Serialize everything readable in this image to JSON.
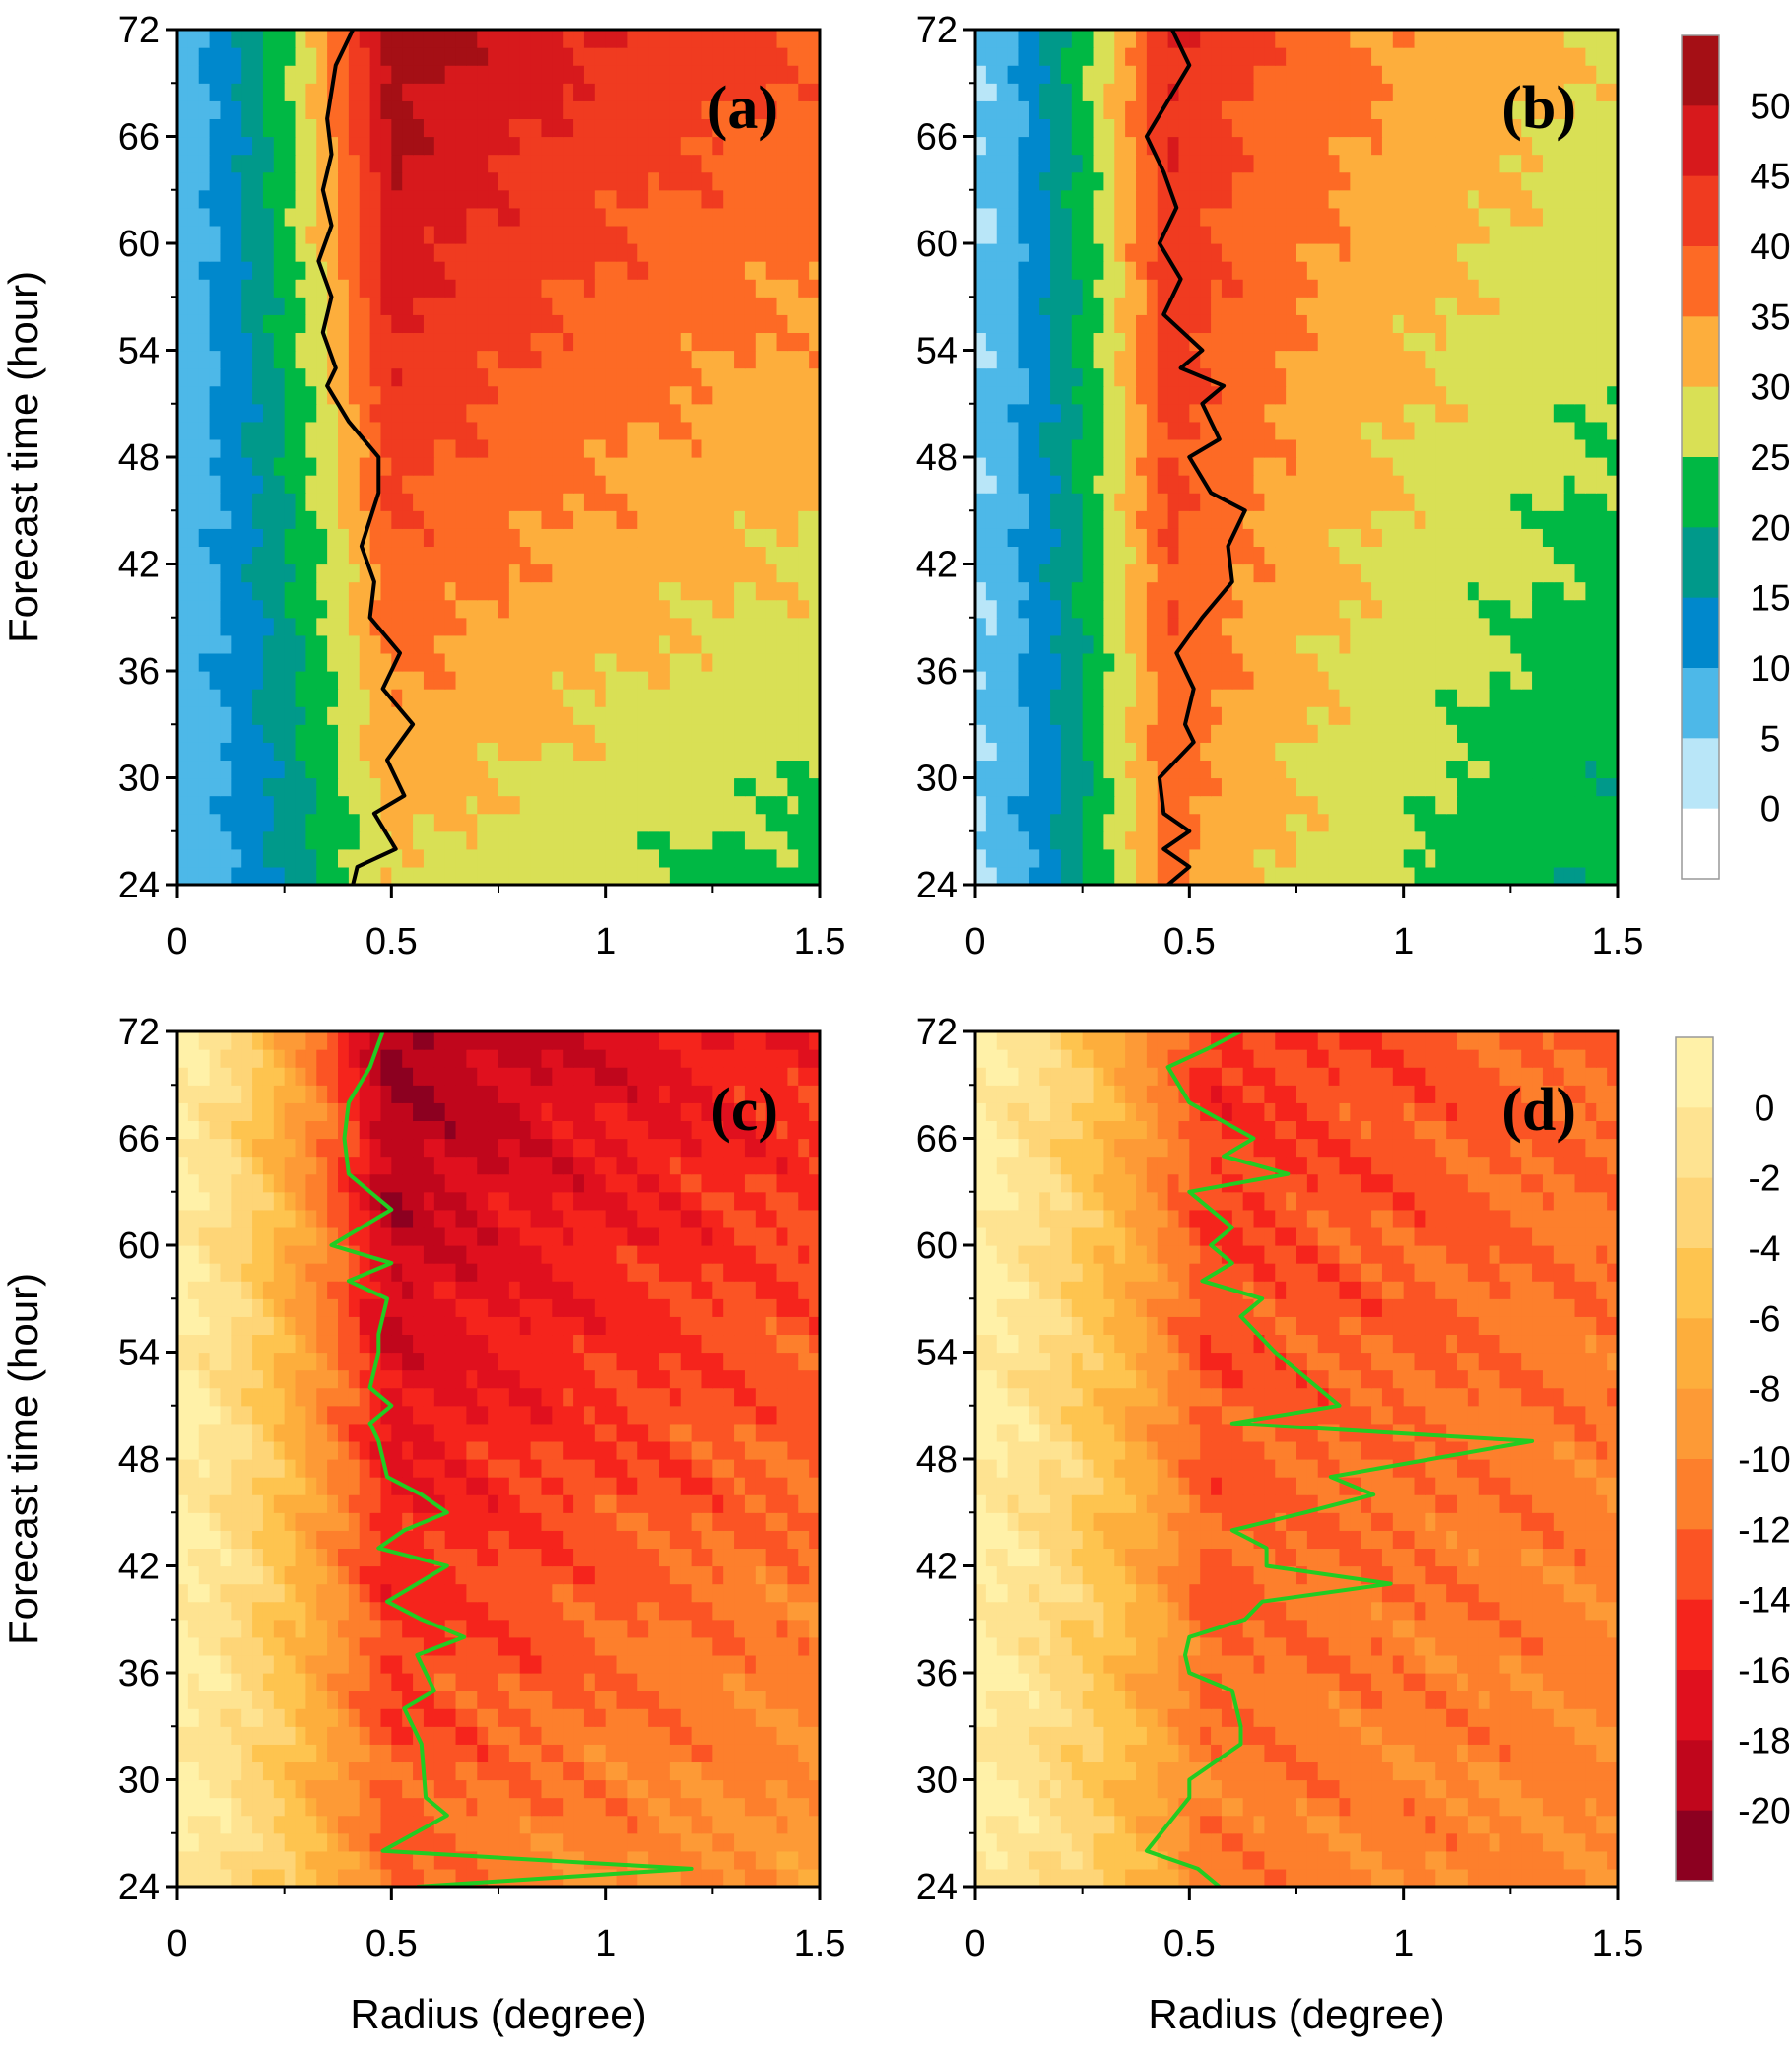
{
  "chart_data": [
    {
      "type": "heatmap",
      "panel_label": "(a)",
      "ylabel": "Forecast time (hour)",
      "xlabel": "",
      "xlim": [
        0,
        1.5
      ],
      "ylim": [
        24,
        72
      ],
      "x_ticks": [
        "0",
        "0.5",
        "1",
        "1.5"
      ],
      "y_ticks": [
        "24",
        "30",
        "36",
        "42",
        "48",
        "54",
        "60",
        "66",
        "72"
      ],
      "colorbar": "top",
      "profile": {
        "core": 0.5,
        "core_width": 0.42,
        "peak_start": 54,
        "peak_end": 30,
        "inner_start": 7,
        "inner_end": 7,
        "outer_start": 40,
        "outer_end": 23
      },
      "line": {
        "color": "#000000",
        "points": [
          [
            0.41,
            72
          ],
          [
            0.37,
            70
          ],
          [
            0.35,
            67
          ],
          [
            0.36,
            65
          ],
          [
            0.34,
            63
          ],
          [
            0.36,
            61
          ],
          [
            0.33,
            59
          ],
          [
            0.36,
            57
          ],
          [
            0.34,
            55
          ],
          [
            0.37,
            53
          ],
          [
            0.35,
            52
          ],
          [
            0.4,
            50
          ],
          [
            0.47,
            48
          ],
          [
            0.47,
            46
          ],
          [
            0.43,
            43
          ],
          [
            0.46,
            41
          ],
          [
            0.45,
            39
          ],
          [
            0.52,
            37
          ],
          [
            0.48,
            35
          ],
          [
            0.55,
            33
          ],
          [
            0.49,
            31
          ],
          [
            0.53,
            29
          ],
          [
            0.46,
            28
          ],
          [
            0.51,
            26
          ],
          [
            0.42,
            25
          ],
          [
            0.41,
            24
          ]
        ]
      }
    },
    {
      "type": "heatmap",
      "panel_label": "(b)",
      "ylabel": "",
      "xlabel": "",
      "xlim": [
        0,
        1.5
      ],
      "ylim": [
        24,
        72
      ],
      "x_ticks": [
        "0",
        "0.5",
        "1",
        "1.5"
      ],
      "y_ticks": [
        "24",
        "30",
        "36",
        "42",
        "48",
        "54",
        "60",
        "66",
        "72"
      ],
      "profile": {
        "core": 0.45,
        "core_width": 0.3,
        "peak_start": 46,
        "peak_end": 37,
        "inner_start": 5,
        "inner_end": 5,
        "outer_start": 30,
        "outer_end": 20
      },
      "line": {
        "color": "#000000",
        "points": [
          [
            0.46,
            72
          ],
          [
            0.5,
            70
          ],
          [
            0.45,
            68
          ],
          [
            0.4,
            66
          ],
          [
            0.44,
            64
          ],
          [
            0.47,
            62
          ],
          [
            0.43,
            60
          ],
          [
            0.48,
            58
          ],
          [
            0.44,
            56
          ],
          [
            0.53,
            54
          ],
          [
            0.48,
            53
          ],
          [
            0.58,
            52
          ],
          [
            0.53,
            51
          ],
          [
            0.57,
            49
          ],
          [
            0.5,
            48
          ],
          [
            0.55,
            46
          ],
          [
            0.63,
            45
          ],
          [
            0.59,
            43
          ],
          [
            0.6,
            41
          ],
          [
            0.53,
            39
          ],
          [
            0.47,
            37
          ],
          [
            0.51,
            35
          ],
          [
            0.49,
            33
          ],
          [
            0.51,
            32
          ],
          [
            0.43,
            30
          ],
          [
            0.44,
            28
          ],
          [
            0.5,
            27
          ],
          [
            0.44,
            26
          ],
          [
            0.5,
            25
          ],
          [
            0.45,
            24
          ]
        ]
      }
    },
    {
      "type": "heatmap",
      "panel_label": "(c)",
      "ylabel": "Forecast time (hour)",
      "xlabel": "Radius (degree)",
      "xlim": [
        0,
        1.5
      ],
      "ylim": [
        24,
        72
      ],
      "x_ticks": [
        "0",
        "0.5",
        "1",
        "1.5"
      ],
      "y_ticks": [
        "24",
        "30",
        "36",
        "42",
        "48",
        "54",
        "60",
        "66",
        "72"
      ],
      "colorbar": "bottom",
      "profile": {
        "core": 0.5,
        "core_width": 0.45,
        "peak_start": -21,
        "peak_end": -12,
        "inner_start": 0.5,
        "inner_end": 0.5,
        "outer_start": -15,
        "outer_end": -9
      },
      "line": {
        "color": "#22cc22",
        "points": [
          [
            0.48,
            72
          ],
          [
            0.45,
            70
          ],
          [
            0.4,
            68
          ],
          [
            0.39,
            66
          ],
          [
            0.4,
            64
          ],
          [
            0.5,
            62
          ],
          [
            0.36,
            60
          ],
          [
            0.5,
            59
          ],
          [
            0.4,
            58
          ],
          [
            0.49,
            57
          ],
          [
            0.47,
            55
          ],
          [
            0.47,
            54
          ],
          [
            0.45,
            52
          ],
          [
            0.5,
            51
          ],
          [
            0.45,
            50
          ],
          [
            0.47,
            49
          ],
          [
            0.49,
            47
          ],
          [
            0.57,
            46
          ],
          [
            0.63,
            45
          ],
          [
            0.53,
            44
          ],
          [
            0.47,
            43
          ],
          [
            0.63,
            42
          ],
          [
            0.56,
            41
          ],
          [
            0.49,
            40
          ],
          [
            0.57,
            39
          ],
          [
            0.67,
            38
          ],
          [
            0.56,
            37
          ],
          [
            0.6,
            35
          ],
          [
            0.53,
            34
          ],
          [
            0.57,
            32
          ],
          [
            0.58,
            29
          ],
          [
            0.63,
            28
          ],
          [
            0.48,
            26
          ],
          [
            1.2,
            25
          ],
          [
            0.56,
            24
          ]
        ]
      }
    },
    {
      "type": "heatmap",
      "panel_label": "(d)",
      "ylabel": "",
      "xlabel": "Radius (degree)",
      "xlim": [
        0,
        1.5
      ],
      "ylim": [
        24,
        72
      ],
      "x_ticks": [
        "0",
        "0.5",
        "1",
        "1.5"
      ],
      "y_ticks": [
        "24",
        "30",
        "36",
        "42",
        "48",
        "54",
        "60",
        "66",
        "72"
      ],
      "profile": {
        "core": 0.55,
        "core_width": 0.45,
        "peak_start": -15,
        "peak_end": -11,
        "inner_start": 0.5,
        "inner_end": 0.5,
        "outer_start": -12,
        "outer_end": -10
      },
      "line": {
        "color": "#22cc22",
        "points": [
          [
            0.62,
            72
          ],
          [
            0.54,
            71
          ],
          [
            0.45,
            70
          ],
          [
            0.5,
            68
          ],
          [
            0.65,
            66
          ],
          [
            0.58,
            65
          ],
          [
            0.73,
            64
          ],
          [
            0.5,
            63
          ],
          [
            0.6,
            61
          ],
          [
            0.55,
            60
          ],
          [
            0.6,
            59
          ],
          [
            0.53,
            58
          ],
          [
            0.67,
            57
          ],
          [
            0.62,
            56
          ],
          [
            0.7,
            54
          ],
          [
            0.8,
            52
          ],
          [
            0.85,
            51
          ],
          [
            0.6,
            50
          ],
          [
            1.3,
            49
          ],
          [
            0.83,
            47
          ],
          [
            0.93,
            46
          ],
          [
            0.77,
            45
          ],
          [
            0.6,
            44
          ],
          [
            0.68,
            43
          ],
          [
            0.68,
            42
          ],
          [
            0.97,
            41
          ],
          [
            0.67,
            40
          ],
          [
            0.63,
            39
          ],
          [
            0.5,
            38
          ],
          [
            0.49,
            37
          ],
          [
            0.5,
            36
          ],
          [
            0.6,
            35
          ],
          [
            0.62,
            33
          ],
          [
            0.62,
            32
          ],
          [
            0.5,
            30
          ],
          [
            0.5,
            29
          ],
          [
            0.4,
            26
          ],
          [
            0.52,
            25
          ],
          [
            0.57,
            24
          ]
        ]
      }
    }
  ],
  "colorbar_top": {
    "labels": [
      "50",
      "45",
      "40",
      "35",
      "30",
      "25",
      "20",
      "15",
      "10",
      "5",
      "0"
    ],
    "colors": [
      "#a50f15",
      "#d7191c",
      "#f03b20",
      "#fd6a25",
      "#fdae3c",
      "#d9e055",
      "#00b844",
      "#00998a",
      "#0088cc",
      "#4db8e8",
      "#b9e6f8",
      "#ffffff"
    ]
  },
  "colorbar_bottom": {
    "labels": [
      "0",
      "-2",
      "-4",
      "-6",
      "-8",
      "-10",
      "-12",
      "-14",
      "-16",
      "-18",
      "-20"
    ],
    "colors": [
      "#fff1a8",
      "#fee391",
      "#fed577",
      "#fec44f",
      "#fdae3c",
      "#fd9a36",
      "#fd7f2c",
      "#fb5424",
      "#f5241c",
      "#e0101e",
      "#c0061c",
      "#8c0020"
    ]
  }
}
